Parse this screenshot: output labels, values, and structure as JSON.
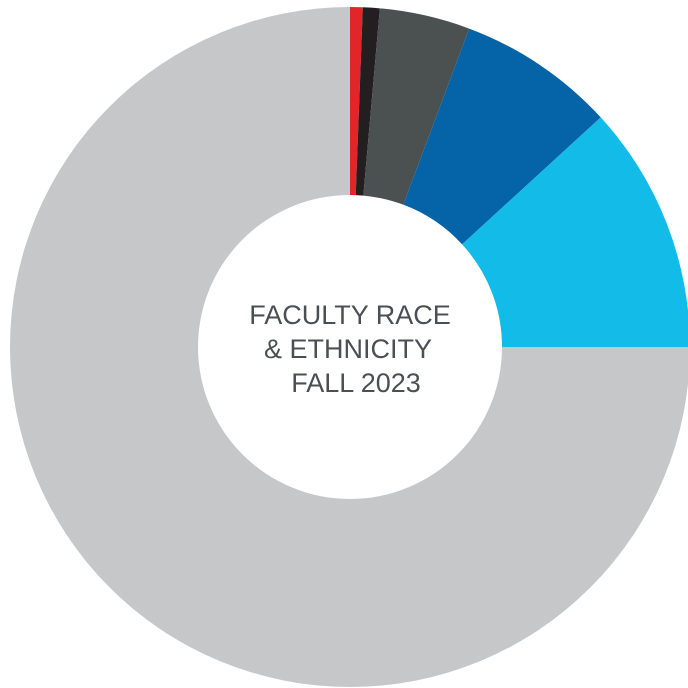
{
  "chart_data": {
    "type": "donut",
    "title": [
      "FACULTY RACE",
      "& ETHNICITY",
      "FALL 2023"
    ],
    "categories": [
      null,
      null,
      null,
      null,
      null,
      null
    ],
    "values": [
      0.6,
      0.8,
      4.3,
      7.5,
      11.8,
      75
    ],
    "colors": [
      "#e0262b",
      "#231f20",
      "#4b5050",
      "#0563a8",
      "#13bce8",
      "#c6c7c9"
    ]
  }
}
